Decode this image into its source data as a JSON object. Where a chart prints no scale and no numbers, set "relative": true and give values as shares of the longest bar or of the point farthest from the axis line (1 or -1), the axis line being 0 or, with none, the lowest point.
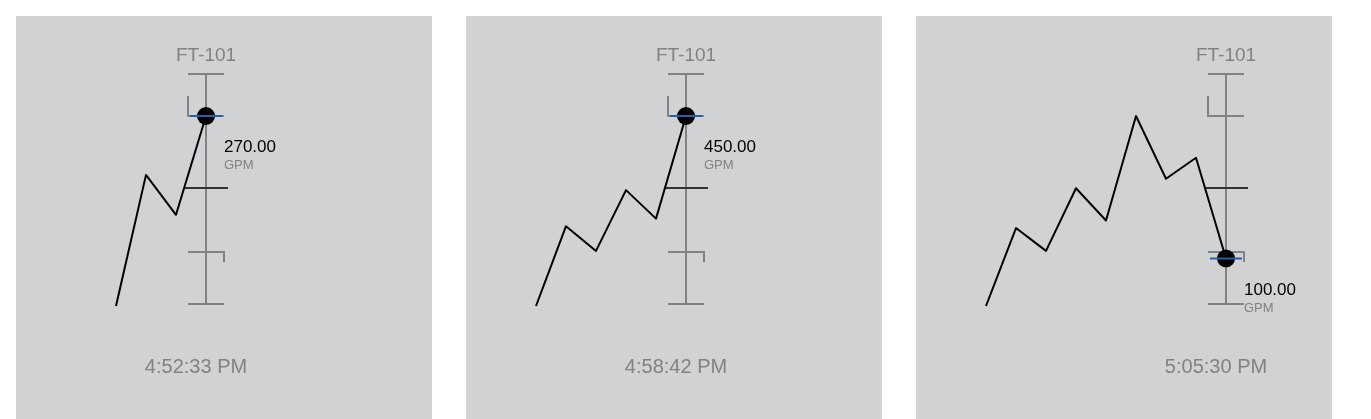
{
  "chart_data": [
    {
      "type": "line",
      "title": "FT-101",
      "xlabel": "4:52:33 PM",
      "relative": true,
      "categories": [
        null,
        null,
        null,
        null
      ],
      "annotations": [
        "270.00",
        "GPM"
      ],
      "series": [
        {
          "color": "#000000",
          "values": [
            0,
            0.69,
            0.48,
            1
          ]
        }
      ]
    },
    {
      "type": "line",
      "title": "FT-101",
      "xlabel": "4:58:42 PM",
      "relative": true,
      "categories": [
        null,
        null,
        null,
        null,
        null,
        null
      ],
      "annotations": [
        "450.00",
        "GPM"
      ],
      "series": [
        {
          "color": "#000000",
          "values": [
            0,
            0.42,
            0.29,
            0.61,
            0.46,
            1
          ]
        }
      ]
    },
    {
      "type": "line",
      "title": "FT-101",
      "xlabel": "5:05:30 PM",
      "relative": true,
      "categories": [
        null,
        null,
        null,
        null,
        null,
        null,
        null,
        null,
        null
      ],
      "annotations": [
        "100.00",
        "GPM"
      ],
      "series": [
        {
          "color": "#000000",
          "values": [
            0,
            0.41,
            0.29,
            0.62,
            0.45,
            1,
            0.67,
            0.78,
            0.25
          ]
        }
      ]
    }
  ]
}
